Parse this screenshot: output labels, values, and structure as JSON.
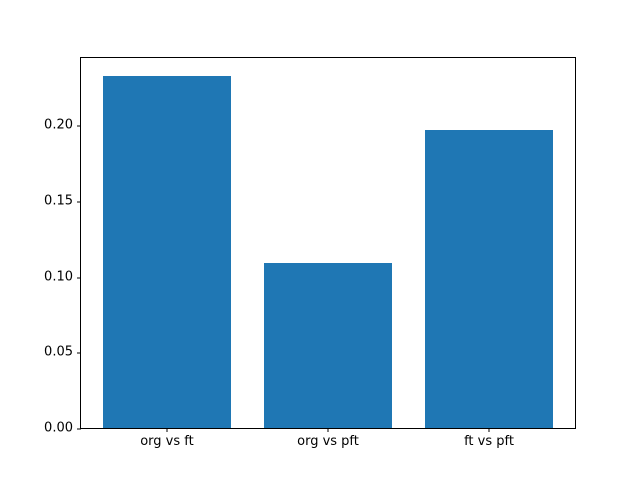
{
  "chart_data": {
    "type": "bar",
    "categories": [
      "org vs ft",
      "org vs pft",
      "ft vs pft"
    ],
    "values": [
      0.233,
      0.109,
      0.197
    ],
    "title": "",
    "xlabel": "",
    "ylabel": "",
    "ylim": [
      0,
      0.2446
    ],
    "xlim": [
      -0.534,
      2.534
    ],
    "bar_width": 0.8,
    "yticks": [
      {
        "value": 0.0,
        "label": "0.00"
      },
      {
        "value": 0.05,
        "label": "0.05"
      },
      {
        "value": 0.1,
        "label": "0.10"
      },
      {
        "value": 0.15,
        "label": "0.15"
      },
      {
        "value": 0.2,
        "label": "0.20"
      }
    ],
    "bar_color": "#1f77b4",
    "spine_color": "#000000",
    "text_color": "#000000",
    "background_color": "#ffffff",
    "grid": false,
    "legend_position": "none"
  }
}
